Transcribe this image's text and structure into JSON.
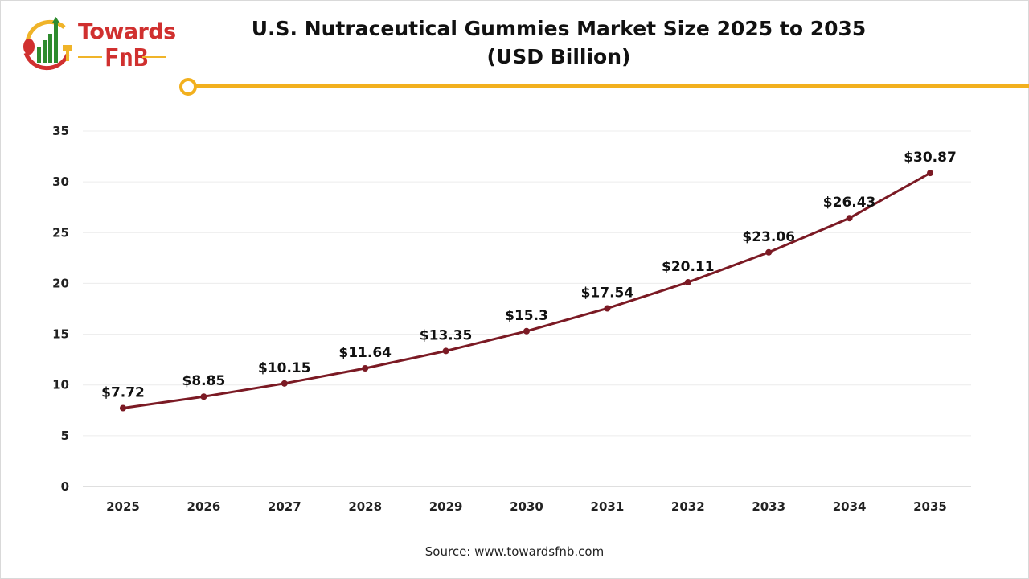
{
  "logo": {
    "line1": "Towards",
    "line2": "FnB"
  },
  "chart_data": {
    "type": "line",
    "title": "U.S. Nutraceutical Gummies Market Size 2025 to 2035",
    "subtitle": "(USD Billion)",
    "categories": [
      "2025",
      "2026",
      "2027",
      "2028",
      "2029",
      "2030",
      "2031",
      "2032",
      "2033",
      "2034",
      "2035"
    ],
    "values": [
      7.72,
      8.85,
      10.15,
      11.64,
      13.35,
      15.3,
      17.54,
      20.11,
      23.06,
      26.43,
      30.87
    ],
    "data_labels": [
      "$7.72",
      "$8.85",
      "$10.15",
      "$11.64",
      "$13.35",
      "$15.3",
      "$17.54",
      "$20.11",
      "$23.06",
      "$26.43",
      "$30.87"
    ],
    "ylim": [
      0,
      35
    ],
    "yticks": [
      0,
      5,
      10,
      15,
      20,
      25,
      30,
      35
    ],
    "xlabel": "",
    "ylabel": "",
    "grid": true,
    "line_color": "#7b1a24",
    "accent_color": "#f2b01e"
  },
  "source": "Source: www.towardsfnb.com"
}
